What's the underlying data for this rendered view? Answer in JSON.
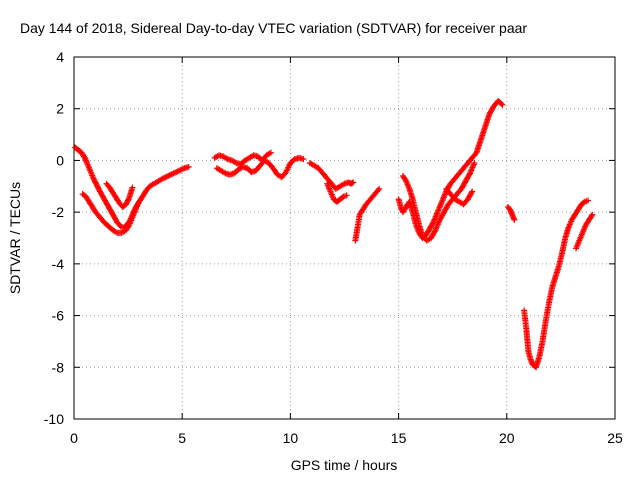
{
  "chart_data": {
    "type": "scatter",
    "title": "Day 144 of 2018, Sidereal Day-to-day VTEC variation (SDTVAR) for receiver paar",
    "xlabel": "GPS time / hours",
    "ylabel": "SDTVAR / TECUs",
    "xlim": [
      0,
      25
    ],
    "ylim": [
      -10,
      4
    ],
    "xticks": [
      0,
      5,
      10,
      15,
      20,
      25
    ],
    "yticks": [
      -10,
      -8,
      -6,
      -4,
      -2,
      0,
      2,
      4
    ],
    "xtick_labels": [
      "0",
      "5",
      "10",
      "15",
      "20",
      "25"
    ],
    "ytick_labels": [
      "-10",
      "-8",
      "-6",
      "-4",
      "-2",
      "0",
      "2",
      "4"
    ],
    "grid": true,
    "marker": "plus",
    "color": "#ff0000",
    "series": [
      {
        "x": [
          0.05,
          0.2,
          0.35,
          0.5,
          0.6,
          0.75,
          0.9,
          1.05,
          1.2,
          1.4,
          1.6,
          1.8,
          2.0,
          2.15,
          2.3,
          2.45,
          2.6,
          2.75,
          2.9,
          3.05,
          3.2,
          3.35,
          3.5,
          3.7,
          3.9,
          4.1,
          4.35,
          4.6,
          4.85,
          5.1,
          5.3
        ],
        "y": [
          0.5,
          0.4,
          0.3,
          0.1,
          -0.1,
          -0.4,
          -0.7,
          -0.95,
          -1.2,
          -1.5,
          -1.8,
          -2.1,
          -2.4,
          -2.55,
          -2.6,
          -2.5,
          -2.3,
          -2.0,
          -1.75,
          -1.55,
          -1.35,
          -1.15,
          -1.0,
          -0.9,
          -0.8,
          -0.7,
          -0.6,
          -0.5,
          -0.4,
          -0.3,
          -0.25
        ]
      },
      {
        "x": [
          0.4,
          0.55,
          0.7,
          0.85,
          1.0,
          1.2,
          1.4,
          1.6,
          1.8,
          2.0,
          2.2,
          2.4,
          2.55,
          2.7,
          2.85,
          3.0
        ],
        "y": [
          -1.3,
          -1.4,
          -1.6,
          -1.8,
          -2.0,
          -2.2,
          -2.4,
          -2.55,
          -2.7,
          -2.8,
          -2.8,
          -2.7,
          -2.5,
          -2.2,
          -1.9,
          -1.6
        ]
      },
      {
        "x": [
          1.5,
          1.65,
          1.8,
          1.95,
          2.1,
          2.25,
          2.4,
          2.55,
          2.7
        ],
        "y": [
          -0.9,
          -1.05,
          -1.25,
          -1.45,
          -1.65,
          -1.8,
          -1.7,
          -1.45,
          -1.05
        ]
      },
      {
        "x": [
          6.5,
          6.7,
          6.9,
          7.1,
          7.3,
          7.5,
          7.7,
          7.9,
          8.1,
          8.3,
          8.5,
          8.7,
          8.9,
          9.1
        ],
        "y": [
          0.1,
          0.2,
          0.15,
          0.05,
          0.0,
          -0.1,
          -0.15,
          0.0,
          0.1,
          0.2,
          0.15,
          0.0,
          0.2,
          0.3
        ]
      },
      {
        "x": [
          6.6,
          6.8,
          7.0,
          7.2,
          7.4,
          7.6,
          7.8,
          8.0,
          8.2,
          8.4,
          8.6,
          8.8,
          9.0,
          9.2,
          9.4,
          9.6,
          9.8,
          10.0,
          10.2,
          10.4,
          10.6
        ],
        "y": [
          -0.3,
          -0.4,
          -0.5,
          -0.55,
          -0.5,
          -0.35,
          -0.25,
          -0.3,
          -0.45,
          -0.4,
          -0.2,
          0.0,
          -0.1,
          -0.3,
          -0.55,
          -0.65,
          -0.45,
          -0.1,
          0.05,
          0.1,
          0.05
        ]
      },
      {
        "x": [
          10.9,
          11.1,
          11.3,
          11.5,
          11.7,
          11.9,
          12.1,
          12.3,
          12.5,
          12.7,
          12.8,
          12.9
        ],
        "y": [
          -0.1,
          -0.2,
          -0.3,
          -0.5,
          -0.7,
          -0.9,
          -1.1,
          -1.0,
          -0.9,
          -0.85,
          -0.9,
          -0.85
        ]
      },
      {
        "x": [
          11.7,
          11.85,
          12.0,
          12.15,
          12.3,
          12.45,
          12.6
        ],
        "y": [
          -0.9,
          -1.2,
          -1.5,
          -1.6,
          -1.5,
          -1.4,
          -1.35
        ]
      },
      {
        "x": [
          13.0,
          13.1,
          13.2,
          13.35,
          13.5,
          13.65,
          13.8,
          13.95,
          14.1
        ],
        "y": [
          -3.1,
          -2.6,
          -2.1,
          -1.9,
          -1.7,
          -1.55,
          -1.4,
          -1.25,
          -1.1
        ]
      },
      {
        "x": [
          15.0,
          15.1,
          15.2,
          15.35,
          15.5,
          15.65,
          15.8,
          15.95,
          16.1,
          16.25,
          16.4,
          16.6,
          16.8,
          17.0,
          17.2,
          17.4,
          17.6,
          17.8,
          18.0,
          18.2,
          18.4,
          18.6,
          18.8,
          19.0,
          19.2,
          19.4,
          19.6,
          19.8
        ],
        "y": [
          -1.5,
          -1.8,
          -2.0,
          -1.8,
          -1.6,
          -2.0,
          -2.5,
          -2.8,
          -3.0,
          -2.9,
          -2.7,
          -2.4,
          -2.0,
          -1.6,
          -1.2,
          -0.9,
          -0.7,
          -0.5,
          -0.3,
          -0.1,
          0.1,
          0.3,
          0.8,
          1.3,
          1.8,
          2.1,
          2.3,
          2.15
        ]
      },
      {
        "x": [
          15.2,
          15.35,
          15.5,
          15.65,
          15.8,
          15.95,
          16.1,
          16.3,
          16.5,
          16.7,
          16.9,
          17.1,
          17.3,
          17.5,
          17.7,
          17.9,
          18.1,
          18.3,
          18.5
        ],
        "y": [
          -0.6,
          -0.8,
          -1.1,
          -1.5,
          -2.0,
          -2.5,
          -2.9,
          -3.1,
          -3.0,
          -2.7,
          -2.3,
          -2.0,
          -1.7,
          -1.5,
          -1.3,
          -1.1,
          -0.8,
          -0.5,
          -0.1
        ]
      },
      {
        "x": [
          17.2,
          17.4,
          17.6,
          17.8,
          18.0,
          18.2,
          18.4
        ],
        "y": [
          -1.1,
          -1.3,
          -1.5,
          -1.6,
          -1.7,
          -1.5,
          -1.2
        ]
      },
      {
        "x": [
          20.05,
          20.15,
          20.25,
          20.35
        ],
        "y": [
          -1.8,
          -1.9,
          -2.1,
          -2.3
        ]
      },
      {
        "x": [
          20.8,
          20.9,
          21.0,
          21.1,
          21.2,
          21.35,
          21.5,
          21.65,
          21.8,
          21.95,
          22.1,
          22.25,
          22.4,
          22.55,
          22.7,
          22.85,
          23.0,
          23.15,
          23.3,
          23.45,
          23.6,
          23.75
        ],
        "y": [
          -5.8,
          -6.5,
          -7.4,
          -7.7,
          -7.9,
          -8.0,
          -7.6,
          -7.0,
          -6.2,
          -5.5,
          -4.9,
          -4.5,
          -4.1,
          -3.6,
          -3.0,
          -2.6,
          -2.3,
          -2.1,
          -1.9,
          -1.7,
          -1.6,
          -1.55
        ]
      },
      {
        "x": [
          23.2,
          23.35,
          23.5,
          23.65,
          23.8,
          23.95
        ],
        "y": [
          -3.4,
          -3.1,
          -2.8,
          -2.5,
          -2.3,
          -2.1
        ]
      }
    ]
  }
}
